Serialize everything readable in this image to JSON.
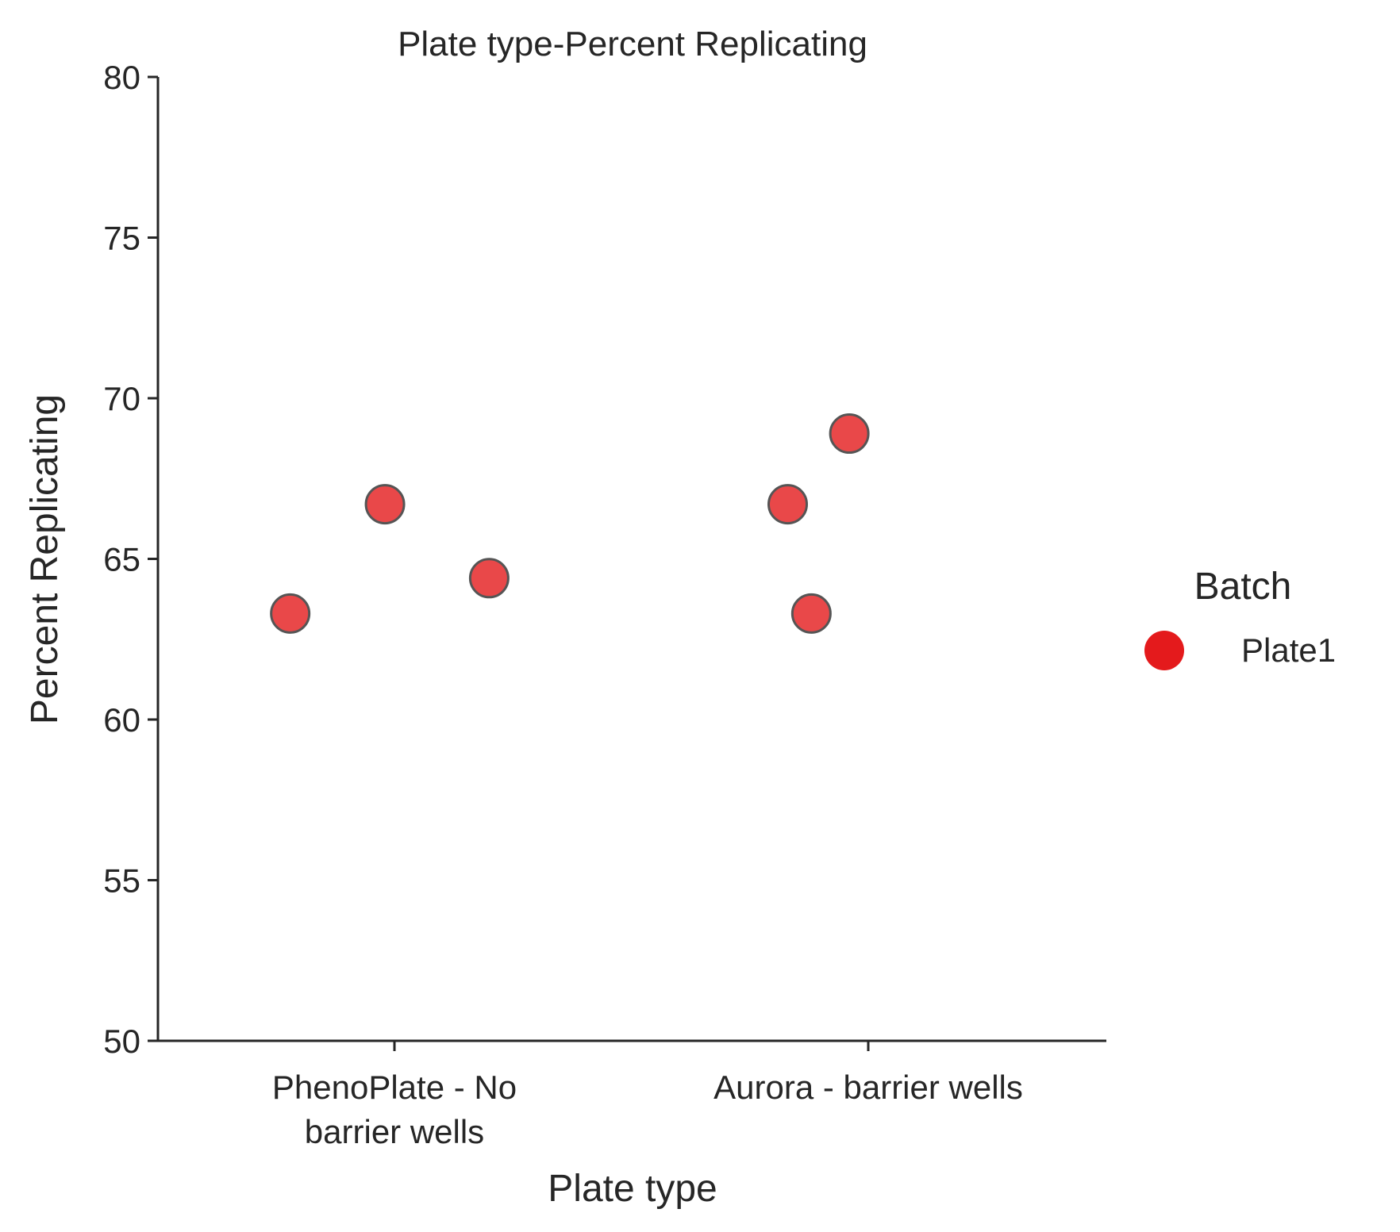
{
  "chart_data": {
    "type": "scatter",
    "title": "Plate type-Percent Replicating",
    "xlabel": "Plate type",
    "ylabel": "Percent Replicating",
    "categories": [
      "PhenoPlate - No barrier wells",
      "Aurora - barrier wells"
    ],
    "category_tick_lines": [
      [
        "PhenoPlate - No",
        "barrier wells"
      ],
      [
        "Aurora - barrier wells"
      ]
    ],
    "ylim": [
      50,
      80
    ],
    "yticks": [
      50,
      55,
      60,
      65,
      70,
      75,
      80
    ],
    "grid": false,
    "legend": {
      "title": "Batch",
      "placement": "right"
    },
    "series": [
      {
        "name": "Plate1",
        "color": "#e41a1c",
        "points": [
          {
            "category": "PhenoPlate - No barrier wells",
            "jitter": -0.22,
            "y": 63.3
          },
          {
            "category": "PhenoPlate - No barrier wells",
            "jitter": -0.02,
            "y": 66.7
          },
          {
            "category": "PhenoPlate - No barrier wells",
            "jitter": 0.2,
            "y": 64.4
          },
          {
            "category": "Aurora - barrier wells",
            "jitter": -0.17,
            "y": 66.7
          },
          {
            "category": "Aurora - barrier wells",
            "jitter": -0.12,
            "y": 63.3
          },
          {
            "category": "Aurora - barrier wells",
            "jitter": -0.04,
            "y": 68.9
          }
        ]
      }
    ]
  }
}
